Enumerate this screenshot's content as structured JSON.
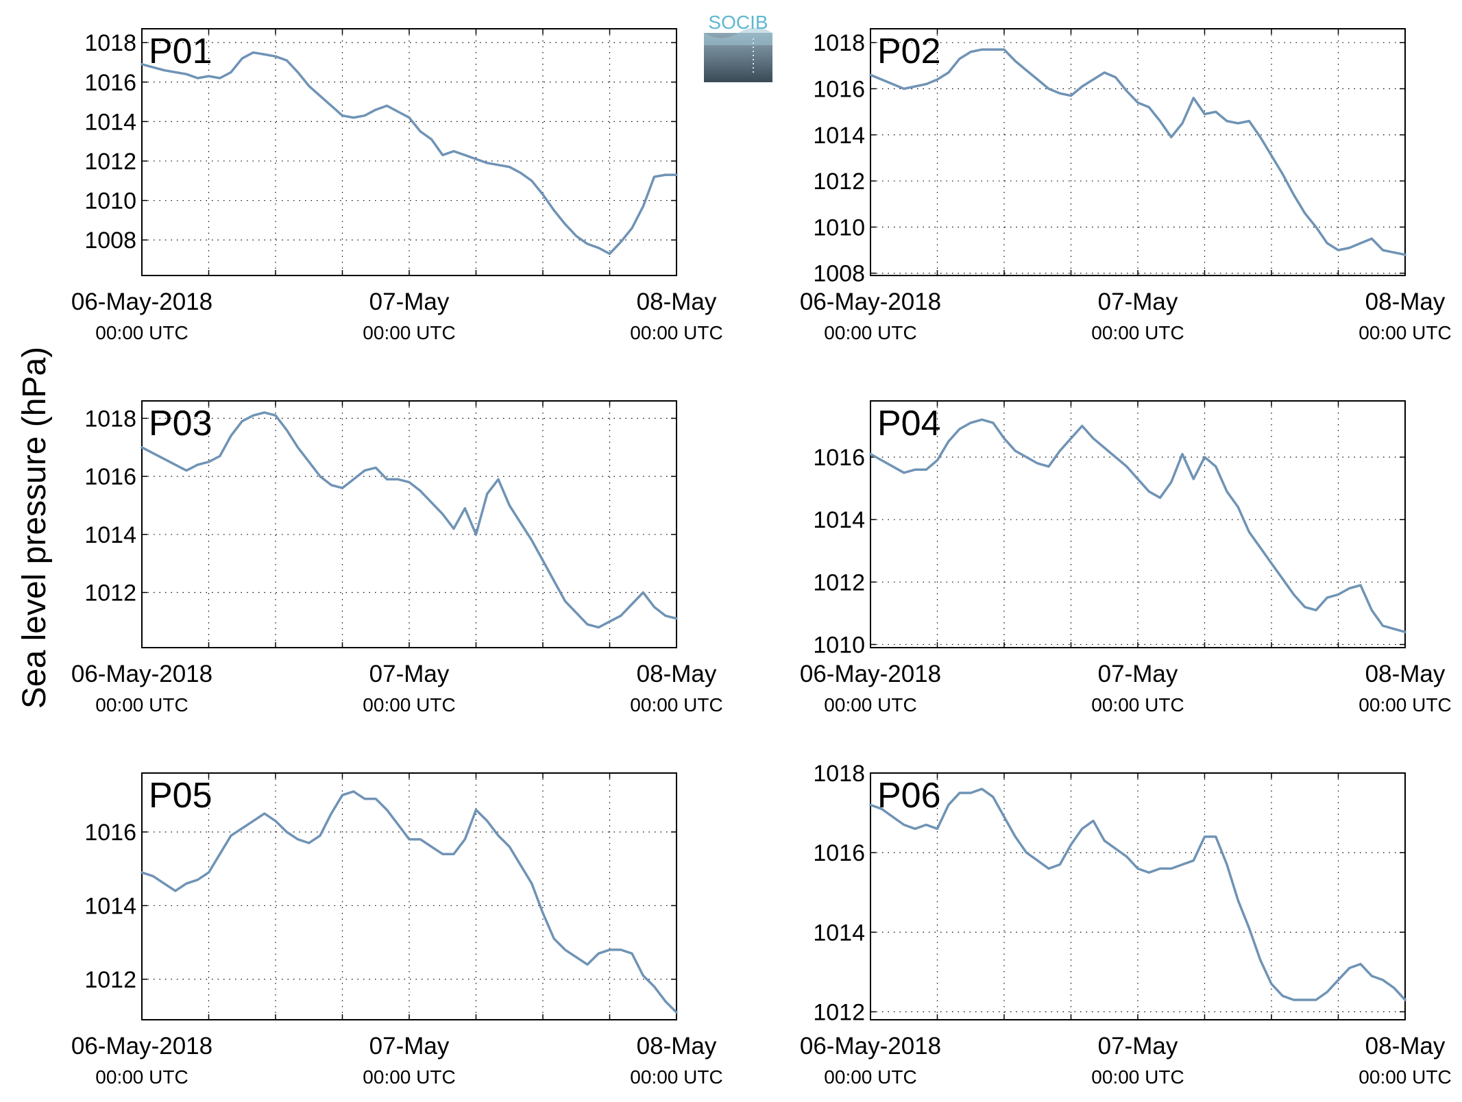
{
  "ylabel": "Sea level pressure (hPa)",
  "logo": {
    "text": "SOCIB"
  },
  "colors": {
    "line": "#6f93b5",
    "panel_label": "#ff0000",
    "grid": "#000000",
    "axes": "#000000"
  },
  "x_tick_labels": [
    {
      "date": "06-May-2018",
      "time": "00:00 UTC"
    },
    {
      "date": "07-May",
      "time": "00:00 UTC"
    },
    {
      "date": "08-May",
      "time": "00:00 UTC"
    }
  ],
  "chart_data": [
    {
      "type": "line",
      "label": "P01",
      "x_unit": "hours since 06-May-2018 00:00 UTC",
      "xlim": [
        0,
        48
      ],
      "ylim": [
        1006.2,
        1018.7
      ],
      "yticks": [
        1008,
        1010,
        1012,
        1014,
        1016,
        1018
      ],
      "grid": true,
      "x": [
        0,
        2,
        4,
        5,
        6,
        7,
        8,
        9,
        10,
        11,
        12,
        13,
        14,
        15,
        16,
        17,
        18,
        19,
        20,
        21,
        22,
        23,
        24,
        25,
        26,
        27,
        28,
        29,
        30,
        31,
        32,
        33,
        34,
        35,
        36,
        37,
        38,
        39,
        40,
        41,
        42,
        43,
        44,
        45,
        46,
        47,
        48
      ],
      "y": [
        1016.9,
        1016.6,
        1016.4,
        1016.2,
        1016.3,
        1016.2,
        1016.5,
        1017.2,
        1017.5,
        1017.4,
        1017.3,
        1017.1,
        1016.5,
        1015.8,
        1015.3,
        1014.8,
        1014.3,
        1014.2,
        1014.3,
        1014.6,
        1014.8,
        1014.5,
        1014.2,
        1013.5,
        1013.1,
        1012.3,
        1012.5,
        1012.3,
        1012.1,
        1011.9,
        1011.8,
        1011.7,
        1011.4,
        1011.0,
        1010.3,
        1009.5,
        1008.8,
        1008.2,
        1007.8,
        1007.6,
        1007.3,
        1007.9,
        1008.6,
        1009.7,
        1011.2,
        1011.3,
        1011.3
      ]
    },
    {
      "type": "line",
      "label": "P02",
      "x_unit": "hours since 06-May-2018 00:00 UTC",
      "xlim": [
        0,
        48
      ],
      "ylim": [
        1007.9,
        1018.6
      ],
      "yticks": [
        1008,
        1010,
        1012,
        1014,
        1016,
        1018
      ],
      "grid": true,
      "x": [
        0,
        2,
        3,
        4,
        5,
        6,
        7,
        8,
        9,
        10,
        11,
        12,
        13,
        14,
        15,
        16,
        17,
        18,
        19,
        20,
        21,
        22,
        23,
        24,
        25,
        26,
        27,
        28,
        29,
        30,
        31,
        32,
        33,
        34,
        35,
        36,
        37,
        38,
        39,
        40,
        41,
        42,
        43,
        44,
        45,
        46,
        47,
        48
      ],
      "y": [
        1016.6,
        1016.2,
        1016.0,
        1016.1,
        1016.2,
        1016.4,
        1016.7,
        1017.3,
        1017.6,
        1017.7,
        1017.7,
        1017.7,
        1017.2,
        1016.8,
        1016.4,
        1016.0,
        1015.8,
        1015.7,
        1016.1,
        1016.4,
        1016.7,
        1016.5,
        1015.9,
        1015.4,
        1015.2,
        1014.6,
        1013.9,
        1014.5,
        1015.6,
        1014.9,
        1015.0,
        1014.6,
        1014.5,
        1014.6,
        1013.9,
        1013.1,
        1012.3,
        1011.4,
        1010.6,
        1010.0,
        1009.3,
        1009.0,
        1009.1,
        1009.3,
        1009.5,
        1009.0,
        1008.9,
        1008.8
      ]
    },
    {
      "type": "line",
      "label": "P03",
      "x_unit": "hours since 06-May-2018 00:00 UTC",
      "xlim": [
        0,
        48
      ],
      "ylim": [
        1010.1,
        1018.6
      ],
      "yticks": [
        1012,
        1014,
        1016,
        1018
      ],
      "grid": true,
      "x": [
        0,
        2,
        3,
        4,
        5,
        6,
        7,
        8,
        9,
        10,
        11,
        12,
        13,
        14,
        15,
        16,
        17,
        18,
        19,
        20,
        21,
        22,
        23,
        24,
        25,
        26,
        27,
        28,
        29,
        30,
        31,
        32,
        33,
        34,
        35,
        36,
        37,
        38,
        39,
        40,
        41,
        42,
        43,
        44,
        45,
        46,
        47,
        48
      ],
      "y": [
        1017.0,
        1016.6,
        1016.4,
        1016.2,
        1016.4,
        1016.5,
        1016.7,
        1017.4,
        1017.9,
        1018.1,
        1018.2,
        1018.1,
        1017.6,
        1017.0,
        1016.5,
        1016.0,
        1015.7,
        1015.6,
        1015.9,
        1016.2,
        1016.3,
        1015.9,
        1015.9,
        1015.8,
        1015.5,
        1015.1,
        1014.7,
        1014.2,
        1014.9,
        1014.0,
        1015.4,
        1015.9,
        1015.0,
        1014.4,
        1013.8,
        1013.1,
        1012.4,
        1011.7,
        1011.3,
        1010.9,
        1010.8,
        1011.0,
        1011.2,
        1011.6,
        1012.0,
        1011.5,
        1011.2,
        1011.1
      ]
    },
    {
      "type": "line",
      "label": "P04",
      "x_unit": "hours since 06-May-2018 00:00 UTC",
      "xlim": [
        0,
        48
      ],
      "ylim": [
        1009.9,
        1017.8
      ],
      "yticks": [
        1010,
        1012,
        1014,
        1016
      ],
      "grid": true,
      "x": [
        0,
        1,
        2,
        3,
        4,
        5,
        6,
        7,
        8,
        9,
        10,
        11,
        12,
        13,
        14,
        15,
        16,
        17,
        18,
        19,
        20,
        21,
        22,
        23,
        24,
        25,
        26,
        27,
        28,
        29,
        30,
        31,
        32,
        33,
        34,
        35,
        36,
        37,
        38,
        39,
        40,
        41,
        42,
        43,
        44,
        45,
        46,
        47,
        48
      ],
      "y": [
        1016.1,
        1015.9,
        1015.7,
        1015.5,
        1015.6,
        1015.6,
        1015.9,
        1016.5,
        1016.9,
        1017.1,
        1017.2,
        1017.1,
        1016.6,
        1016.2,
        1016.0,
        1015.8,
        1015.7,
        1016.2,
        1016.6,
        1017.0,
        1016.6,
        1016.3,
        1016.0,
        1015.7,
        1015.3,
        1014.9,
        1014.7,
        1015.2,
        1016.1,
        1015.3,
        1016.0,
        1015.7,
        1014.9,
        1014.4,
        1013.6,
        1013.1,
        1012.6,
        1012.1,
        1011.6,
        1011.2,
        1011.1,
        1011.5,
        1011.6,
        1011.8,
        1011.9,
        1011.1,
        1010.6,
        1010.5,
        1010.4
      ]
    },
    {
      "type": "line",
      "label": "P05",
      "x_unit": "hours since 06-May-2018 00:00 UTC",
      "xlim": [
        0,
        48
      ],
      "ylim": [
        1010.9,
        1017.6
      ],
      "yticks": [
        1012,
        1014,
        1016
      ],
      "grid": true,
      "x": [
        0,
        1,
        2,
        3,
        4,
        5,
        6,
        7,
        8,
        9,
        10,
        11,
        12,
        13,
        14,
        15,
        16,
        17,
        18,
        19,
        20,
        21,
        22,
        23,
        24,
        25,
        26,
        27,
        28,
        29,
        30,
        31,
        32,
        33,
        34,
        35,
        36,
        37,
        38,
        39,
        40,
        41,
        42,
        43,
        44,
        45,
        46,
        47,
        48
      ],
      "y": [
        1014.9,
        1014.8,
        1014.6,
        1014.4,
        1014.6,
        1014.7,
        1014.9,
        1015.4,
        1015.9,
        1016.1,
        1016.3,
        1016.5,
        1016.3,
        1016.0,
        1015.8,
        1015.7,
        1015.9,
        1016.5,
        1017.0,
        1017.1,
        1016.9,
        1016.9,
        1016.6,
        1016.2,
        1015.8,
        1015.8,
        1015.6,
        1015.4,
        1015.4,
        1015.8,
        1016.6,
        1016.3,
        1015.9,
        1015.6,
        1015.1,
        1014.6,
        1013.8,
        1013.1,
        1012.8,
        1012.6,
        1012.4,
        1012.7,
        1012.8,
        1012.8,
        1012.7,
        1012.1,
        1011.8,
        1011.4,
        1011.1
      ]
    },
    {
      "type": "line",
      "label": "P06",
      "x_unit": "hours since 06-May-2018 00:00 UTC",
      "xlim": [
        0,
        48
      ],
      "ylim": [
        1011.8,
        1018.0
      ],
      "yticks": [
        1012,
        1014,
        1016,
        1018
      ],
      "grid": true,
      "x": [
        0,
        1,
        2,
        3,
        4,
        5,
        6,
        7,
        8,
        9,
        10,
        11,
        12,
        13,
        14,
        15,
        16,
        17,
        18,
        19,
        20,
        21,
        22,
        23,
        24,
        25,
        26,
        27,
        28,
        29,
        30,
        31,
        32,
        33,
        34,
        35,
        36,
        37,
        38,
        39,
        40,
        41,
        42,
        43,
        44,
        45,
        46,
        47,
        48
      ],
      "y": [
        1017.2,
        1017.1,
        1016.9,
        1016.7,
        1016.6,
        1016.7,
        1016.6,
        1017.2,
        1017.5,
        1017.5,
        1017.6,
        1017.4,
        1016.9,
        1016.4,
        1016.0,
        1015.8,
        1015.6,
        1015.7,
        1016.2,
        1016.6,
        1016.8,
        1016.3,
        1016.1,
        1015.9,
        1015.6,
        1015.5,
        1015.6,
        1015.6,
        1015.7,
        1015.8,
        1016.4,
        1016.4,
        1015.7,
        1014.8,
        1014.1,
        1013.3,
        1012.7,
        1012.4,
        1012.3,
        1012.3,
        1012.3,
        1012.5,
        1012.8,
        1013.1,
        1013.2,
        1012.9,
        1012.8,
        1012.6,
        1012.3
      ]
    }
  ]
}
